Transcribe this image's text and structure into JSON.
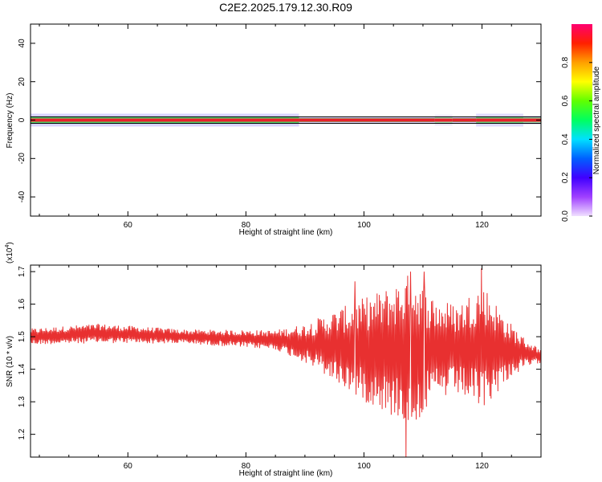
{
  "figure": {
    "title": "C2E2.2025.179.12.30.R09"
  },
  "colors": {
    "frame": "#000000",
    "snr_line": "#e83030",
    "spectral_band_peak": "#e8202a",
    "spectral_band_mid": "#39d94c",
    "spectral_band_low": "#b8a8ff"
  },
  "colorbar": {
    "label": "Normalized spectral amplitude",
    "ticks": [
      "0.0",
      "0.2",
      "0.4",
      "0.6",
      "0.8"
    ],
    "tick_values": [
      0.0,
      0.2,
      0.4,
      0.6,
      0.8
    ],
    "range": [
      0,
      1
    ],
    "stops": [
      "#f0e0ff",
      "#a040ff",
      "#4000ff",
      "#0060ff",
      "#00e0ff",
      "#00ff60",
      "#60ff00",
      "#ffff00",
      "#ffa000",
      "#ff2000",
      "#ff0070"
    ]
  },
  "chart_data": [
    {
      "type": "heatmap",
      "xlabel": "Height of straight line (km)",
      "ylabel": "Frequency (Hz)",
      "xlim": [
        43.5,
        130
      ],
      "ylim": [
        -50,
        50
      ],
      "xticks": [
        "60",
        "80",
        "100",
        "120"
      ],
      "xtick_values": [
        60,
        80,
        100,
        120
      ],
      "yticks": [
        "40",
        "20",
        "0",
        "-20",
        "-40"
      ],
      "ytick_values": [
        40,
        20,
        0,
        -20,
        -40
      ],
      "band": {
        "center_hz": 0,
        "segments": [
          {
            "x": [
              43.5,
              89
            ],
            "halfwidth_hz": 2.5,
            "intensity": 0.95
          },
          {
            "x": [
              89,
              112
            ],
            "halfwidth_hz": 1.0,
            "intensity": 0.95
          },
          {
            "x": [
              112,
              115
            ],
            "halfwidth_hz": 2.0,
            "intensity": 0.5
          },
          {
            "x": [
              115,
              119
            ],
            "halfwidth_hz": 1.0,
            "intensity": 0.95
          },
          {
            "x": [
              119,
              127
            ],
            "halfwidth_hz": 2.5,
            "intensity": 0.8
          },
          {
            "x": [
              127,
              130
            ],
            "halfwidth_hz": 1.5,
            "intensity": 0.7
          }
        ]
      }
    },
    {
      "type": "line",
      "xlabel": "Height of straight line (km)",
      "ylabel": "SNR (10 * v/v)",
      "y_exponent": "(x10",
      "y_exponent_power": "4",
      "xlim": [
        43.5,
        130
      ],
      "ylim": [
        1.13,
        1.72
      ],
      "xticks": [
        "60",
        "80",
        "100",
        "120"
      ],
      "xtick_values": [
        60,
        80,
        100,
        120
      ],
      "yticks": [
        "1.7",
        "1.6",
        "1.5",
        "1.4",
        "1.3",
        "1.2"
      ],
      "ytick_values": [
        1.7,
        1.6,
        1.5,
        1.4,
        1.3,
        1.2
      ],
      "series": [
        {
          "envelope": [
            {
              "x": 43.5,
              "center": 1.5,
              "amplitude": 0.025
            },
            {
              "x": 55,
              "center": 1.51,
              "amplitude": 0.03
            },
            {
              "x": 70,
              "center": 1.5,
              "amplitude": 0.022
            },
            {
              "x": 85,
              "center": 1.49,
              "amplitude": 0.03
            },
            {
              "x": 90,
              "center": 1.48,
              "amplitude": 0.06
            },
            {
              "x": 95,
              "center": 1.47,
              "amplitude": 0.11
            },
            {
              "x": 100,
              "center": 1.46,
              "amplitude": 0.16
            },
            {
              "x": 105,
              "center": 1.46,
              "amplitude": 0.2
            },
            {
              "x": 108,
              "center": 1.46,
              "amplitude": 0.24
            },
            {
              "x": 112,
              "center": 1.46,
              "amplitude": 0.16
            },
            {
              "x": 116,
              "center": 1.46,
              "amplitude": 0.14
            },
            {
              "x": 120,
              "center": 1.47,
              "amplitude": 0.2
            },
            {
              "x": 124,
              "center": 1.46,
              "amplitude": 0.1
            },
            {
              "x": 127,
              "center": 1.45,
              "amplitude": 0.05
            },
            {
              "x": 130,
              "center": 1.44,
              "amplitude": 0.02
            }
          ],
          "peaks": [
            {
              "x": 107.1,
              "y": 1.13
            },
            {
              "x": 119.9,
              "y": 1.71
            },
            {
              "x": 107.9,
              "y": 1.7
            },
            {
              "x": 110.2,
              "y": 1.7
            },
            {
              "x": 98.5,
              "y": 1.67
            },
            {
              "x": 104.6,
              "y": 1.26
            }
          ]
        }
      ]
    }
  ]
}
